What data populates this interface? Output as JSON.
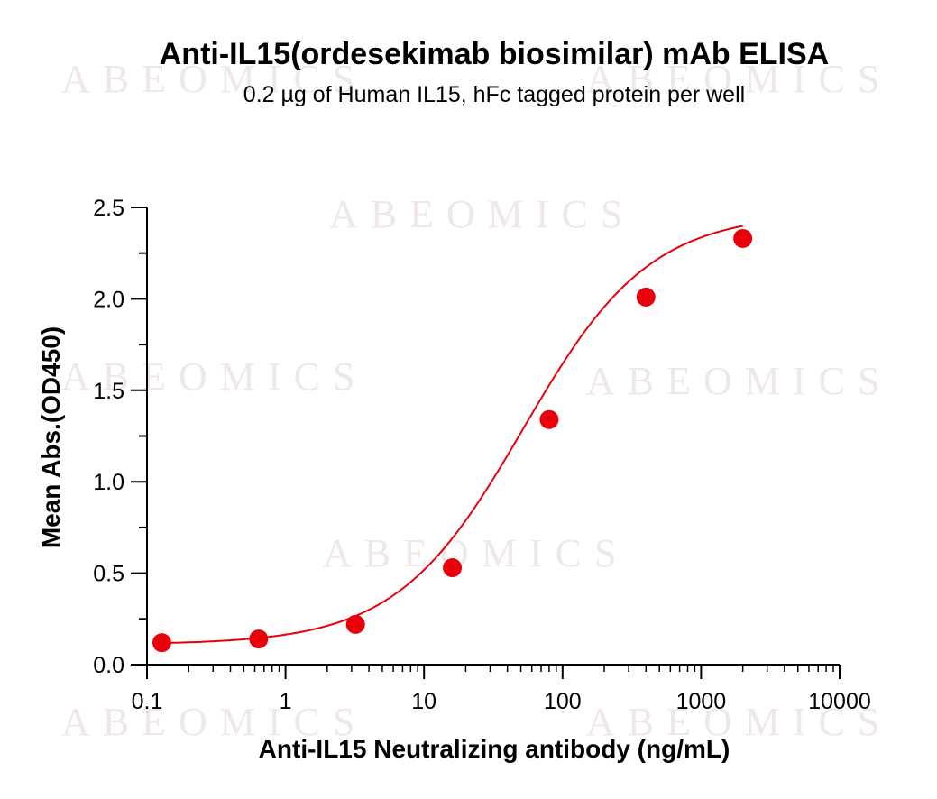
{
  "chart_data": {
    "type": "scatter",
    "title": "Anti-IL15(ordesekimab biosimilar) mAb ELISA",
    "subtitle": "0.2 µg of Human IL15, hFc tagged protein per well",
    "xlabel": "Anti-IL15 Neutralizing antibody (ng/mL)",
    "ylabel": "Mean Abs.(OD450)",
    "x_scale": "log",
    "xlim": [
      0.1,
      10000
    ],
    "ylim": [
      0.0,
      2.5
    ],
    "x_ticks": [
      "0.1",
      "1",
      "10",
      "100",
      "1000",
      "10000"
    ],
    "y_ticks": [
      "0.0",
      "0.5",
      "1.0",
      "1.5",
      "2.0",
      "2.5"
    ],
    "grid": false,
    "fit_curve": "sigmoidal",
    "series": [
      {
        "color": "#e8000b",
        "x": [
          0.128,
          0.64,
          3.2,
          16,
          80,
          400,
          2000
        ],
        "y": [
          0.12,
          0.14,
          0.22,
          0.53,
          1.34,
          2.01,
          2.33
        ]
      }
    ],
    "watermark": "ABEOMICS"
  }
}
